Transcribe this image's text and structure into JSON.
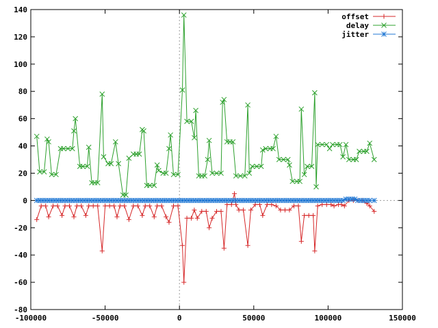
{
  "chart_data": {
    "type": "line",
    "title": "",
    "xlabel": "",
    "ylabel": "",
    "xlim": [
      -100000,
      150000
    ],
    "ylim": [
      -80,
      140
    ],
    "x_ticks": [
      -100000,
      -50000,
      0,
      50000,
      100000,
      150000
    ],
    "y_ticks": [
      -80,
      -60,
      -40,
      -20,
      0,
      20,
      40,
      60,
      80,
      100,
      120,
      140
    ],
    "x_tick_labels": [
      "-100000",
      "-50000",
      "0",
      "50000",
      "100000",
      "150000"
    ],
    "y_tick_labels": [
      "-80",
      "-60",
      "-40",
      "-20",
      "0",
      "20",
      "40",
      "60",
      "80",
      "100",
      "120",
      "140"
    ],
    "grid": false,
    "zero_axes": true,
    "legend_position": "top-right",
    "series": [
      {
        "name": "offset",
        "color": "#d62728",
        "marker": "plus",
        "points": [
          [
            -96000,
            -14
          ],
          [
            -93000,
            -4
          ],
          [
            -90000,
            -4
          ],
          [
            -88000,
            -12
          ],
          [
            -85000,
            -4
          ],
          [
            -82000,
            -4
          ],
          [
            -79000,
            -11
          ],
          [
            -77000,
            -4
          ],
          [
            -74000,
            -4
          ],
          [
            -71000,
            -12
          ],
          [
            -69000,
            -4
          ],
          [
            -66000,
            -4
          ],
          [
            -63000,
            -11
          ],
          [
            -61000,
            -4
          ],
          [
            -58000,
            -4
          ],
          [
            -55000,
            -4
          ],
          [
            -52000,
            -37
          ],
          [
            -50000,
            -4
          ],
          [
            -47000,
            -4
          ],
          [
            -44000,
            -4
          ],
          [
            -42000,
            -12
          ],
          [
            -40000,
            -4
          ],
          [
            -37000,
            -4
          ],
          [
            -34000,
            -14
          ],
          [
            -31000,
            -4
          ],
          [
            -28000,
            -4
          ],
          [
            -25000,
            -11
          ],
          [
            -23000,
            -4
          ],
          [
            -20000,
            -4
          ],
          [
            -17000,
            -12
          ],
          [
            -15000,
            -4
          ],
          [
            -12000,
            -4
          ],
          [
            -9000,
            -12
          ],
          [
            -7000,
            -16
          ],
          [
            -4000,
            -4
          ],
          [
            -1000,
            -4
          ],
          [
            2000,
            -33
          ],
          [
            3000,
            -60
          ],
          [
            5000,
            -13
          ],
          [
            8000,
            -13
          ],
          [
            10000,
            -7
          ],
          [
            12000,
            -13
          ],
          [
            15000,
            -8
          ],
          [
            18000,
            -8
          ],
          [
            20000,
            -20
          ],
          [
            22000,
            -13
          ],
          [
            25000,
            -8
          ],
          [
            28000,
            -8
          ],
          [
            30000,
            -35
          ],
          [
            32000,
            -3
          ],
          [
            35000,
            -3
          ],
          [
            37000,
            5
          ],
          [
            38000,
            -3
          ],
          [
            40000,
            -7
          ],
          [
            43000,
            -7
          ],
          [
            46000,
            -33
          ],
          [
            48000,
            -7
          ],
          [
            51000,
            -3
          ],
          [
            54000,
            -3
          ],
          [
            56000,
            -11
          ],
          [
            59000,
            -3
          ],
          [
            62000,
            -3
          ],
          [
            65000,
            -4
          ],
          [
            68000,
            -7
          ],
          [
            71000,
            -7
          ],
          [
            74000,
            -7
          ],
          [
            77000,
            -4
          ],
          [
            80000,
            -4
          ],
          [
            82000,
            -30
          ],
          [
            84000,
            -11
          ],
          [
            87000,
            -11
          ],
          [
            90000,
            -11
          ],
          [
            91000,
            -37
          ],
          [
            93000,
            -4
          ],
          [
            96000,
            -3
          ],
          [
            99000,
            -3
          ],
          [
            102000,
            -3
          ],
          [
            104000,
            -4
          ],
          [
            107000,
            -3
          ],
          [
            109000,
            -3
          ],
          [
            111000,
            -4
          ],
          [
            114000,
            0
          ],
          [
            117000,
            0
          ],
          [
            120000,
            0
          ],
          [
            123000,
            0
          ],
          [
            126000,
            -2
          ],
          [
            128000,
            -4
          ],
          [
            131000,
            -8
          ]
        ]
      },
      {
        "name": "delay",
        "color": "#2ca02c",
        "marker": "cross",
        "points": [
          [
            -96000,
            47
          ],
          [
            -94000,
            21
          ],
          [
            -91000,
            21
          ],
          [
            -89000,
            45
          ],
          [
            -88000,
            43
          ],
          [
            -86000,
            19
          ],
          [
            -83000,
            19
          ],
          [
            -80000,
            38
          ],
          [
            -78000,
            38
          ],
          [
            -75000,
            38
          ],
          [
            -72000,
            38
          ],
          [
            -71000,
            51
          ],
          [
            -70000,
            60
          ],
          [
            -67000,
            25
          ],
          [
            -65000,
            25
          ],
          [
            -62000,
            25
          ],
          [
            -61000,
            39
          ],
          [
            -59000,
            13
          ],
          [
            -57000,
            13
          ],
          [
            -55000,
            13
          ],
          [
            -52000,
            78
          ],
          [
            -51000,
            32
          ],
          [
            -48000,
            27
          ],
          [
            -46000,
            27
          ],
          [
            -43000,
            43
          ],
          [
            -41000,
            27
          ],
          [
            -38000,
            4
          ],
          [
            -36000,
            4
          ],
          [
            -34000,
            31
          ],
          [
            -31000,
            34
          ],
          [
            -29000,
            34
          ],
          [
            -27000,
            34
          ],
          [
            -25000,
            52
          ],
          [
            -24000,
            51
          ],
          [
            -22000,
            11
          ],
          [
            -20000,
            11
          ],
          [
            -17000,
            11
          ],
          [
            -15000,
            26
          ],
          [
            -14000,
            22
          ],
          [
            -11000,
            20
          ],
          [
            -9000,
            20
          ],
          [
            -7000,
            38
          ],
          [
            -6000,
            48
          ],
          [
            -4000,
            19
          ],
          [
            -1000,
            19
          ],
          [
            2000,
            81
          ],
          [
            3000,
            136
          ],
          [
            5000,
            58
          ],
          [
            8000,
            58
          ],
          [
            10000,
            46
          ],
          [
            11000,
            66
          ],
          [
            13000,
            18
          ],
          [
            15000,
            18
          ],
          [
            17000,
            18
          ],
          [
            19000,
            30
          ],
          [
            20000,
            44
          ],
          [
            22000,
            20
          ],
          [
            25000,
            20
          ],
          [
            28000,
            20
          ],
          [
            29000,
            72
          ],
          [
            30000,
            74
          ],
          [
            32000,
            43
          ],
          [
            34000,
            43
          ],
          [
            36000,
            43
          ],
          [
            38000,
            18
          ],
          [
            41000,
            18
          ],
          [
            44000,
            18
          ],
          [
            46000,
            70
          ],
          [
            47000,
            20
          ],
          [
            49000,
            25
          ],
          [
            52000,
            25
          ],
          [
            55000,
            25
          ],
          [
            56000,
            37
          ],
          [
            58000,
            38
          ],
          [
            61000,
            38
          ],
          [
            63000,
            38
          ],
          [
            65000,
            47
          ],
          [
            67000,
            30
          ],
          [
            70000,
            30
          ],
          [
            73000,
            30
          ],
          [
            74000,
            26
          ],
          [
            76000,
            14
          ],
          [
            79000,
            14
          ],
          [
            81000,
            14
          ],
          [
            82000,
            67
          ],
          [
            84000,
            19
          ],
          [
            86000,
            25
          ],
          [
            89000,
            25
          ],
          [
            91000,
            79
          ],
          [
            92000,
            10
          ],
          [
            93000,
            41
          ],
          [
            96000,
            41
          ],
          [
            99000,
            41
          ],
          [
            101000,
            38
          ],
          [
            103000,
            41
          ],
          [
            106000,
            41
          ],
          [
            108000,
            41
          ],
          [
            110000,
            32
          ],
          [
            112000,
            41
          ],
          [
            114000,
            30
          ],
          [
            117000,
            30
          ],
          [
            119000,
            30
          ],
          [
            121000,
            36
          ],
          [
            124000,
            36
          ],
          [
            126000,
            36
          ],
          [
            128000,
            42
          ],
          [
            131000,
            30
          ]
        ]
      },
      {
        "name": "jitter",
        "color": "#1f77d4",
        "marker": "star",
        "points": [
          [
            -96000,
            0
          ],
          [
            -94000,
            0
          ],
          [
            -92000,
            0
          ],
          [
            -90000,
            0
          ],
          [
            -88000,
            0
          ],
          [
            -86000,
            0
          ],
          [
            -84000,
            0
          ],
          [
            -82000,
            0
          ],
          [
            -80000,
            0
          ],
          [
            -78000,
            0
          ],
          [
            -76000,
            0
          ],
          [
            -74000,
            0
          ],
          [
            -72000,
            0
          ],
          [
            -70000,
            0
          ],
          [
            -68000,
            0
          ],
          [
            -66000,
            0
          ],
          [
            -64000,
            0
          ],
          [
            -62000,
            0
          ],
          [
            -60000,
            0
          ],
          [
            -58000,
            0
          ],
          [
            -56000,
            0
          ],
          [
            -54000,
            0
          ],
          [
            -52000,
            0
          ],
          [
            -50000,
            0
          ],
          [
            -48000,
            0
          ],
          [
            -46000,
            0
          ],
          [
            -44000,
            0
          ],
          [
            -42000,
            0
          ],
          [
            -40000,
            0
          ],
          [
            -38000,
            0
          ],
          [
            -36000,
            0
          ],
          [
            -34000,
            0
          ],
          [
            -32000,
            0
          ],
          [
            -30000,
            0
          ],
          [
            -28000,
            0
          ],
          [
            -26000,
            0
          ],
          [
            -24000,
            0
          ],
          [
            -22000,
            0
          ],
          [
            -20000,
            0
          ],
          [
            -18000,
            0
          ],
          [
            -16000,
            0
          ],
          [
            -14000,
            0
          ],
          [
            -12000,
            0
          ],
          [
            -10000,
            0
          ],
          [
            -8000,
            0
          ],
          [
            -6000,
            0
          ],
          [
            -4000,
            0
          ],
          [
            -2000,
            0
          ],
          [
            0,
            0
          ],
          [
            2000,
            0
          ],
          [
            4000,
            0
          ],
          [
            6000,
            0
          ],
          [
            8000,
            0
          ],
          [
            10000,
            0
          ],
          [
            12000,
            0
          ],
          [
            14000,
            0
          ],
          [
            16000,
            0
          ],
          [
            18000,
            0
          ],
          [
            20000,
            0
          ],
          [
            22000,
            0
          ],
          [
            24000,
            0
          ],
          [
            26000,
            0
          ],
          [
            28000,
            0
          ],
          [
            30000,
            0
          ],
          [
            32000,
            0
          ],
          [
            34000,
            0
          ],
          [
            36000,
            0
          ],
          [
            38000,
            0
          ],
          [
            40000,
            0
          ],
          [
            42000,
            0
          ],
          [
            44000,
            0
          ],
          [
            46000,
            0
          ],
          [
            48000,
            0
          ],
          [
            50000,
            0
          ],
          [
            52000,
            0
          ],
          [
            54000,
            0
          ],
          [
            56000,
            0
          ],
          [
            58000,
            0
          ],
          [
            60000,
            0
          ],
          [
            62000,
            0
          ],
          [
            64000,
            0
          ],
          [
            66000,
            0
          ],
          [
            68000,
            0
          ],
          [
            70000,
            0
          ],
          [
            72000,
            0
          ],
          [
            74000,
            0
          ],
          [
            76000,
            0
          ],
          [
            78000,
            0
          ],
          [
            80000,
            0
          ],
          [
            82000,
            0
          ],
          [
            84000,
            0
          ],
          [
            86000,
            0
          ],
          [
            88000,
            0
          ],
          [
            90000,
            0
          ],
          [
            92000,
            0
          ],
          [
            94000,
            0
          ],
          [
            96000,
            0
          ],
          [
            98000,
            0
          ],
          [
            100000,
            0
          ],
          [
            102000,
            0
          ],
          [
            104000,
            0
          ],
          [
            106000,
            0
          ],
          [
            108000,
            0
          ],
          [
            110000,
            0
          ],
          [
            112000,
            1
          ],
          [
            114000,
            1
          ],
          [
            116000,
            1
          ],
          [
            118000,
            1
          ],
          [
            120000,
            0
          ],
          [
            122000,
            0
          ],
          [
            124000,
            0
          ],
          [
            126000,
            0
          ],
          [
            128000,
            0
          ],
          [
            131000,
            0
          ]
        ]
      }
    ]
  }
}
